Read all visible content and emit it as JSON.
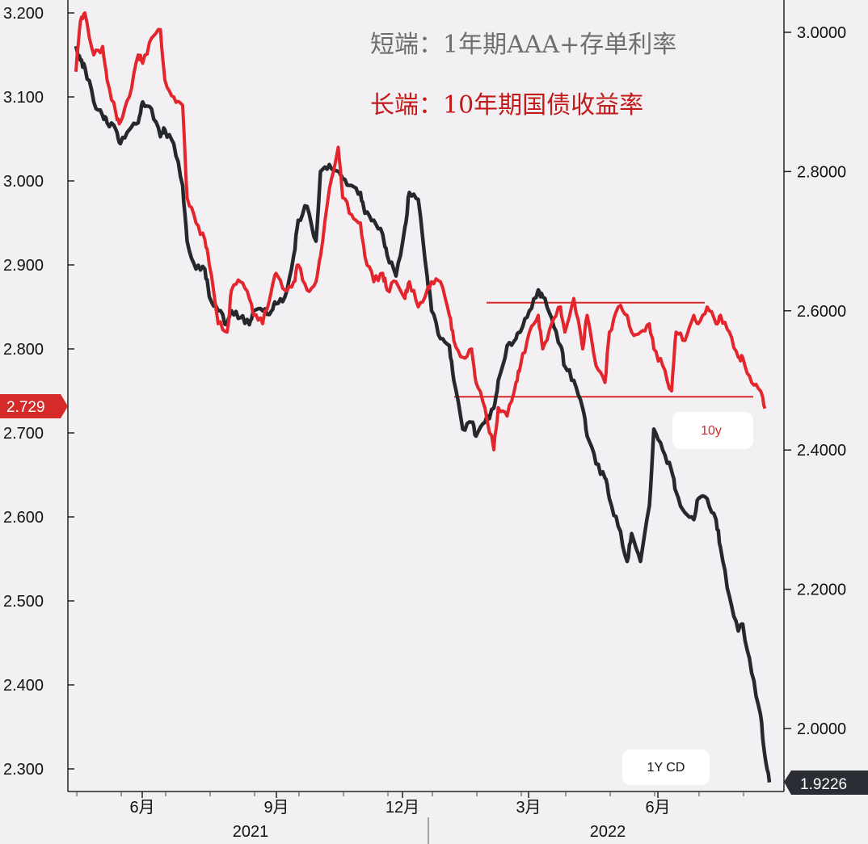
{
  "legend": {
    "short_label": "短端：1年期AAA+存单利率",
    "long_label": "长端：10年期国债收益率"
  },
  "labels": {
    "y10_tag": "10y",
    "cd_tag": "1Y CD",
    "left_badge": "2.729",
    "right_badge": "1.9226"
  },
  "colors": {
    "cd_line": "#25282d",
    "y10_line": "#e3262d",
    "support_line": "#d42a2a",
    "left_badge": "#d42a2a",
    "right_badge": "#2a2d33"
  },
  "chart_data": {
    "type": "line",
    "title": "",
    "y_left": {
      "ticks": [
        "3.200",
        "3.100",
        "3.000",
        "2.900",
        "2.800",
        "2.700",
        "2.600",
        "2.500",
        "2.400",
        "2.300"
      ],
      "range": [
        2.29,
        3.21
      ]
    },
    "y_right": {
      "ticks": [
        "3.0000",
        "2.8000",
        "2.6000",
        "2.4000",
        "2.2000",
        "2.0000"
      ],
      "range": [
        1.92,
        3.06
      ]
    },
    "x_ticks": [
      "6月",
      "9月",
      "12月",
      "3月",
      "6月"
    ],
    "x_years": [
      "2021",
      "2022"
    ],
    "series": [
      {
        "name": "10y",
        "axis": "left",
        "x": [
          4.0,
          4.1,
          4.2,
          4.4,
          4.6,
          4.7,
          4.9,
          5.0,
          5.2,
          5.4,
          5.5,
          5.7,
          5.9,
          6.0,
          6.2,
          6.4,
          6.5,
          6.7,
          6.9,
          7.0,
          7.2,
          7.4,
          7.5,
          7.7,
          7.9,
          8.0,
          8.2,
          8.4,
          8.5,
          8.7,
          8.9,
          9.0,
          9.2,
          9.4,
          9.5,
          9.7,
          9.9,
          10.0,
          10.2,
          10.4,
          10.5,
          10.7,
          10.9,
          11.0,
          11.2,
          11.4,
          11.5,
          11.7,
          11.9,
          12.0,
          12.2,
          12.4,
          12.5,
          12.7,
          12.9,
          13.0,
          13.2,
          13.4,
          13.5,
          13.7,
          13.9,
          14.0,
          14.2,
          14.4,
          14.5,
          14.7,
          14.9,
          15.0,
          15.2,
          15.4,
          15.5,
          15.7,
          15.9,
          16.0,
          16.2,
          16.4,
          16.5,
          16.7,
          16.9,
          17.0,
          17.2,
          17.4,
          17.5,
          17.7,
          17.9,
          18.0,
          18.2,
          18.4,
          18.5,
          18.7,
          18.9,
          19.0,
          19.2,
          19.4,
          19.5
        ],
        "values": [
          3.13,
          3.19,
          3.2,
          3.15,
          3.16,
          3.12,
          3.08,
          3.07,
          3.1,
          3.15,
          3.14,
          3.17,
          3.18,
          3.12,
          3.1,
          3.09,
          2.98,
          2.95,
          2.93,
          2.9,
          2.83,
          2.82,
          2.87,
          2.88,
          2.86,
          2.84,
          2.83,
          2.87,
          2.89,
          2.87,
          2.88,
          2.9,
          2.87,
          2.88,
          2.91,
          2.99,
          3.04,
          2.98,
          2.96,
          2.95,
          2.91,
          2.88,
          2.89,
          2.87,
          2.88,
          2.86,
          2.88,
          2.85,
          2.87,
          2.88,
          2.88,
          2.84,
          2.81,
          2.79,
          2.8,
          2.76,
          2.73,
          2.68,
          2.73,
          2.72,
          2.76,
          2.78,
          2.82,
          2.84,
          2.8,
          2.83,
          2.85,
          2.82,
          2.86,
          2.8,
          2.84,
          2.78,
          2.76,
          2.82,
          2.85,
          2.84,
          2.82,
          2.82,
          2.83,
          2.8,
          2.78,
          2.75,
          2.82,
          2.81,
          2.84,
          2.83,
          2.85,
          2.83,
          2.84,
          2.82,
          2.79,
          2.79,
          2.76,
          2.75,
          2.729
        ]
      },
      {
        "name": "1Y CD",
        "axis": "right",
        "x": [
          4.0,
          4.1,
          4.2,
          4.4,
          4.6,
          4.7,
          4.9,
          5.0,
          5.2,
          5.4,
          5.5,
          5.7,
          5.9,
          6.0,
          6.2,
          6.4,
          6.5,
          6.7,
          6.9,
          7.0,
          7.2,
          7.4,
          7.5,
          7.7,
          7.9,
          8.0,
          8.2,
          8.4,
          8.5,
          8.7,
          8.9,
          9.0,
          9.2,
          9.4,
          9.5,
          9.7,
          9.9,
          10.0,
          10.2,
          10.4,
          10.5,
          10.7,
          10.9,
          11.0,
          11.2,
          11.4,
          11.5,
          11.7,
          11.9,
          12.0,
          12.2,
          12.4,
          12.5,
          12.7,
          12.9,
          13.0,
          13.2,
          13.4,
          13.5,
          13.7,
          13.9,
          14.0,
          14.2,
          14.4,
          14.5,
          14.7,
          14.9,
          15.0,
          15.2,
          15.4,
          15.5,
          15.7,
          15.9,
          16.0,
          16.2,
          16.4,
          16.5,
          16.7,
          16.9,
          17.0,
          17.2,
          17.4,
          17.5,
          17.7,
          17.9,
          18.0,
          18.2,
          18.4,
          18.5,
          18.7,
          18.9,
          19.0,
          19.2,
          19.4,
          19.5,
          19.6
        ],
        "values": [
          2.98,
          2.96,
          2.95,
          2.9,
          2.88,
          2.87,
          2.86,
          2.84,
          2.86,
          2.87,
          2.9,
          2.89,
          2.85,
          2.86,
          2.84,
          2.78,
          2.7,
          2.66,
          2.66,
          2.62,
          2.6,
          2.58,
          2.6,
          2.59,
          2.58,
          2.6,
          2.6,
          2.6,
          2.61,
          2.62,
          2.68,
          2.73,
          2.75,
          2.7,
          2.8,
          2.81,
          2.8,
          2.79,
          2.78,
          2.77,
          2.74,
          2.73,
          2.71,
          2.68,
          2.65,
          2.72,
          2.77,
          2.76,
          2.65,
          2.6,
          2.56,
          2.55,
          2.5,
          2.43,
          2.44,
          2.42,
          2.44,
          2.46,
          2.5,
          2.55,
          2.56,
          2.57,
          2.6,
          2.63,
          2.62,
          2.59,
          2.55,
          2.52,
          2.5,
          2.46,
          2.42,
          2.38,
          2.36,
          2.33,
          2.29,
          2.24,
          2.28,
          2.24,
          2.32,
          2.43,
          2.4,
          2.37,
          2.34,
          2.31,
          2.3,
          2.33,
          2.33,
          2.3,
          2.26,
          2.19,
          2.14,
          2.15,
          2.08,
          2.02,
          1.96,
          1.9226
        ]
      }
    ],
    "channel": {
      "upper_left_value": 2.855,
      "lower_left_value": 2.743,
      "x_start": 13.2,
      "x_end": 19.6
    }
  }
}
